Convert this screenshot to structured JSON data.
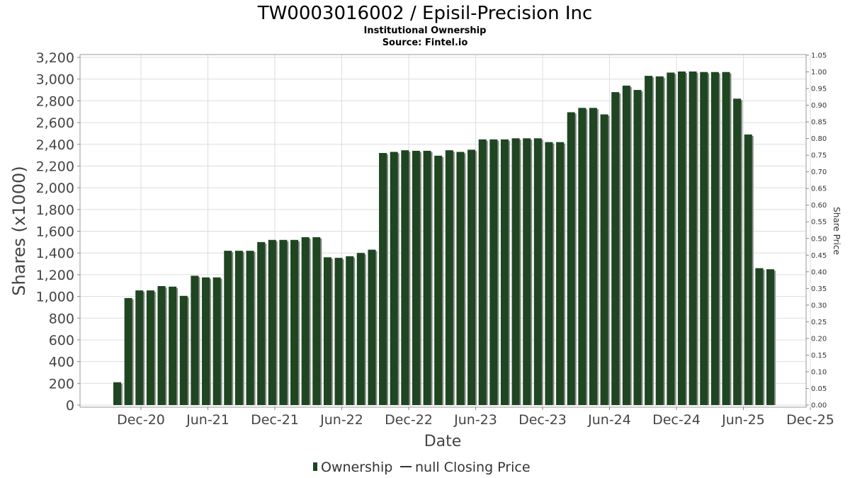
{
  "chart_data": {
    "type": "bar",
    "title": "TW0003016002 / Episil-Precision Inc",
    "subtitle": "Institutional Ownership",
    "source": "Source: Fintel.io",
    "xlabel": "Date",
    "ylabel": "Shares (x1000)",
    "y2label": "Share Price",
    "ylim": [
      0,
      3250
    ],
    "y2lim": [
      0,
      1.05
    ],
    "yticks": [
      "0",
      "200",
      "400",
      "600",
      "800",
      "1,000",
      "1,200",
      "1,400",
      "1,600",
      "1,800",
      "2,000",
      "2,200",
      "2,400",
      "2,600",
      "2,800",
      "3,000",
      "3,200"
    ],
    "y2ticks": [
      "0.00",
      "0.05",
      "0.10",
      "0.15",
      "0.20",
      "0.25",
      "0.30",
      "0.35",
      "0.40",
      "0.45",
      "0.50",
      "0.55",
      "0.60",
      "0.65",
      "0.70",
      "0.75",
      "0.80",
      "0.85",
      "0.90",
      "0.95",
      "1.00",
      "1.05"
    ],
    "xticks": [
      "Dec-20",
      "Jun-21",
      "Dec-21",
      "Jun-22",
      "Dec-22",
      "Jun-23",
      "Dec-23",
      "Jun-24",
      "Dec-24",
      "Jun-25",
      "Dec-25"
    ],
    "grid": true,
    "legend_position": "bottom",
    "series": [
      {
        "name": "Ownership",
        "color": "#1e4620",
        "values": [
          210,
          985,
          1055,
          1055,
          1095,
          1090,
          1005,
          1190,
          1175,
          1175,
          1420,
          1420,
          1420,
          1500,
          1520,
          1520,
          1520,
          1545,
          1545,
          1360,
          1355,
          1370,
          1400,
          1430,
          2320,
          2330,
          2345,
          2340,
          2340,
          2295,
          2345,
          2330,
          2350,
          2445,
          2445,
          2445,
          2455,
          2455,
          2455,
          2420,
          2420,
          2695,
          2735,
          2735,
          2675,
          2880,
          2940,
          2900,
          3030,
          3025,
          3060,
          3070,
          3070,
          3065,
          3065,
          3065,
          2820,
          2490,
          1260,
          1250
        ]
      },
      {
        "name": "null Closing Price",
        "color": "#333333",
        "values": []
      }
    ]
  }
}
